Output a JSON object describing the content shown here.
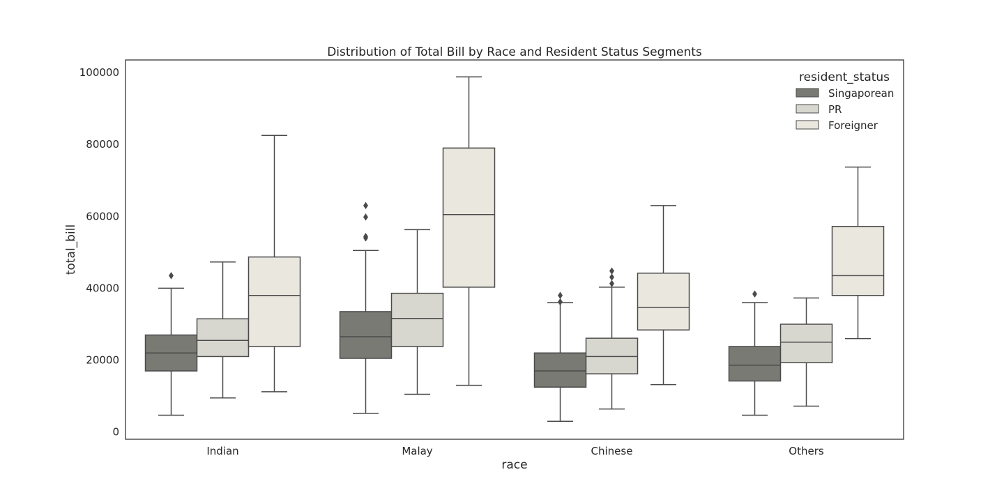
{
  "chart_data": {
    "type": "box",
    "title": "Distribution of Total Bill by Race and Resident Status Segments",
    "xlabel": "race",
    "ylabel": "total_bill",
    "categories": [
      "Indian",
      "Malay",
      "Chinese",
      "Others"
    ],
    "ylim": [
      -2000,
      103500
    ],
    "yticks": [
      0,
      20000,
      40000,
      60000,
      80000,
      100000
    ],
    "grid": false,
    "legend": {
      "title": "resident_status",
      "position": "top-right"
    },
    "series": [
      {
        "name": "Singaporean",
        "color": "#7a7a74",
        "boxes": [
          {
            "whisker_low": 4700,
            "q1": 17000,
            "median": 22000,
            "q3": 27000,
            "whisker_high": 40000,
            "outliers": [
              43500
            ]
          },
          {
            "whisker_low": 5200,
            "q1": 20500,
            "median": 26500,
            "q3": 33500,
            "whisker_high": 50500,
            "outliers": [
              54000,
              54400,
              59800,
              63000
            ]
          },
          {
            "whisker_low": 3000,
            "q1": 12500,
            "median": 17000,
            "q3": 22000,
            "whisker_high": 36000,
            "outliers": [
              36200,
              38000
            ]
          },
          {
            "whisker_low": 4700,
            "q1": 14200,
            "median": 18600,
            "q3": 23800,
            "whisker_high": 36000,
            "outliers": [
              38400
            ]
          }
        ]
      },
      {
        "name": "PR",
        "color": "#d8d7cf",
        "boxes": [
          {
            "whisker_low": 9500,
            "q1": 21000,
            "median": 25500,
            "q3": 31500,
            "whisker_high": 47300,
            "outliers": []
          },
          {
            "whisker_low": 10500,
            "q1": 23800,
            "median": 31600,
            "q3": 38600,
            "whisker_high": 56300,
            "outliers": []
          },
          {
            "whisker_low": 6400,
            "q1": 16200,
            "median": 21000,
            "q3": 26100,
            "whisker_high": 40300,
            "outliers": [
              41300,
              43100,
              44800
            ]
          },
          {
            "whisker_low": 7200,
            "q1": 19300,
            "median": 25000,
            "q3": 30000,
            "whisker_high": 37300,
            "outliers": []
          }
        ]
      },
      {
        "name": "Foreigner",
        "color": "#eae7df",
        "boxes": [
          {
            "whisker_low": 11200,
            "q1": 23800,
            "median": 38000,
            "q3": 48700,
            "whisker_high": 82500,
            "outliers": []
          },
          {
            "whisker_low": 13000,
            "q1": 40300,
            "median": 60500,
            "q3": 79000,
            "whisker_high": 98800,
            "outliers": []
          },
          {
            "whisker_low": 13200,
            "q1": 28400,
            "median": 34700,
            "q3": 44200,
            "whisker_high": 63000,
            "outliers": []
          },
          {
            "whisker_low": 26000,
            "q1": 38000,
            "median": 43500,
            "q3": 57200,
            "whisker_high": 73700,
            "outliers": []
          }
        ]
      }
    ]
  }
}
